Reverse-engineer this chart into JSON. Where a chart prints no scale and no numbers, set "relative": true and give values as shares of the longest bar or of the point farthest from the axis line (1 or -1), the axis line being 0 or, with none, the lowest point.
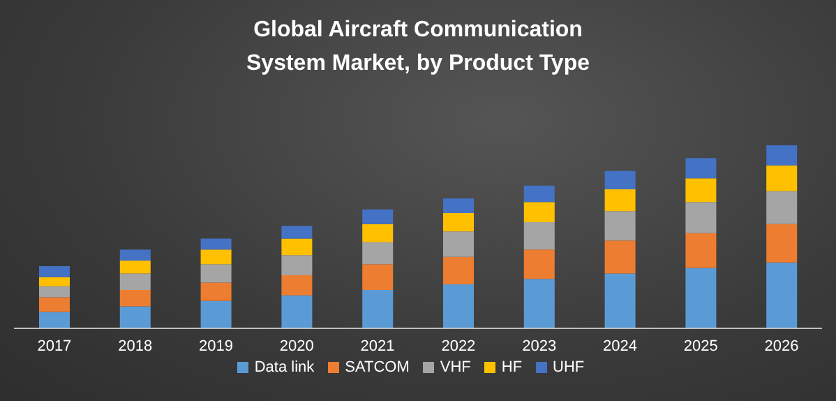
{
  "chart_data": {
    "type": "bar",
    "title": "Global Aircraft Communication System Market, by Product Type",
    "categories": [
      "2017",
      "2018",
      "2019",
      "2020",
      "2021",
      "2022",
      "2023",
      "2024",
      "2025",
      "2026"
    ],
    "stacked": true,
    "relative": true,
    "legend": "bottom",
    "grid": false,
    "series": [
      {
        "name": "Data link",
        "color": "#5b9bd5",
        "values": [
          0.09,
          0.12,
          0.15,
          0.18,
          0.21,
          0.24,
          0.27,
          0.3,
          0.33,
          0.36
        ]
      },
      {
        "name": "SATCOM",
        "color": "#ed7d31",
        "values": [
          0.08,
          0.09,
          0.1,
          0.11,
          0.14,
          0.15,
          0.16,
          0.18,
          0.19,
          0.21
        ]
      },
      {
        "name": "VHF",
        "color": "#a5a5a5",
        "values": [
          0.06,
          0.09,
          0.1,
          0.11,
          0.12,
          0.14,
          0.15,
          0.16,
          0.17,
          0.18
        ]
      },
      {
        "name": "HF",
        "color": "#ffc000",
        "values": [
          0.05,
          0.07,
          0.08,
          0.09,
          0.1,
          0.1,
          0.11,
          0.12,
          0.13,
          0.14
        ]
      },
      {
        "name": "UHF",
        "color": "#4472c4",
        "values": [
          0.06,
          0.06,
          0.06,
          0.07,
          0.08,
          0.08,
          0.09,
          0.1,
          0.11,
          0.11
        ]
      }
    ]
  }
}
